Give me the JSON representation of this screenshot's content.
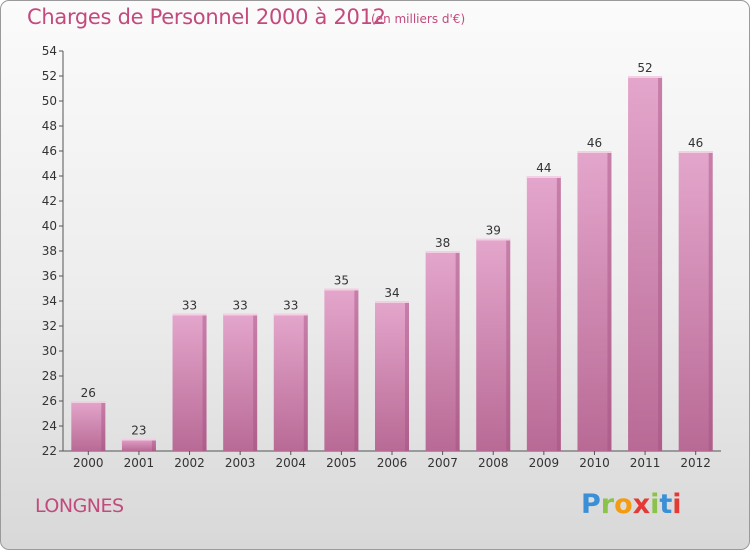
{
  "header": {
    "title": "Charges de Personnel 2000 à 2012",
    "subtitle": "(en milliers d'€)"
  },
  "footer": {
    "commune": "LONGNES",
    "logo_letters": [
      "P",
      "r",
      "o",
      "x",
      "i",
      "t",
      "i"
    ],
    "logo_colors": [
      "#3a8fd6",
      "#8bc34a",
      "#f39c12",
      "#e53935",
      "#8bc34a",
      "#3a8fd6",
      "#e53935"
    ]
  },
  "colors": {
    "bar_top": "#e4a6cc",
    "bar_bottom": "#b86a95",
    "bar_side": "#a3507e",
    "text": "#333333",
    "title": "#c24a7c"
  },
  "chart_data": {
    "type": "bar",
    "categories": [
      "2000",
      "2001",
      "2002",
      "2003",
      "2004",
      "2005",
      "2006",
      "2007",
      "2008",
      "2009",
      "2010",
      "2011",
      "2012"
    ],
    "values": [
      26,
      23,
      33,
      33,
      33,
      35,
      34,
      38,
      39,
      44,
      46,
      52,
      46
    ],
    "ylim": [
      22,
      54
    ],
    "yticks": [
      22,
      24,
      26,
      28,
      30,
      32,
      34,
      36,
      38,
      40,
      42,
      44,
      46,
      48,
      50,
      52,
      54
    ],
    "grid": false
  }
}
